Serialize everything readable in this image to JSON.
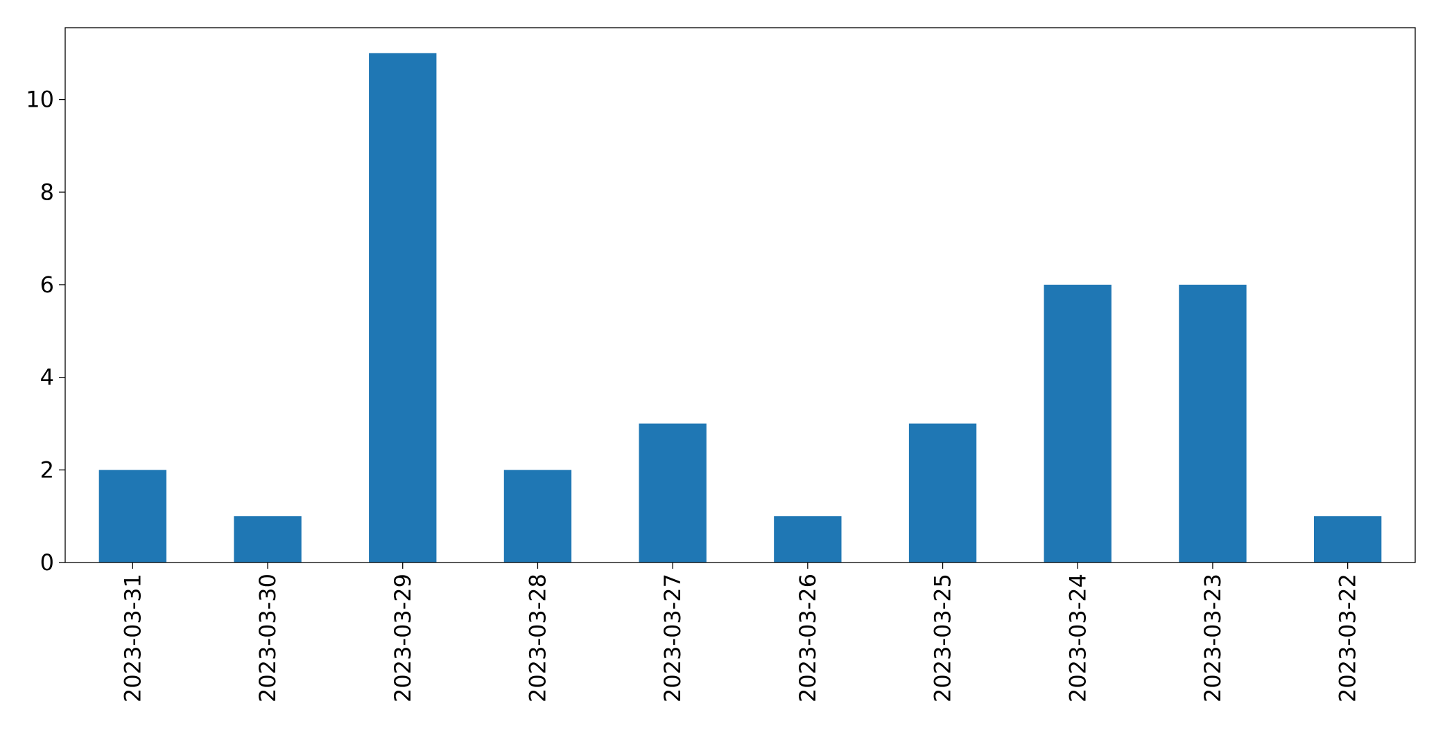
{
  "chart_data": {
    "type": "bar",
    "categories": [
      "2023-03-31",
      "2023-03-30",
      "2023-03-29",
      "2023-03-28",
      "2023-03-27",
      "2023-03-26",
      "2023-03-25",
      "2023-03-24",
      "2023-03-23",
      "2023-03-22"
    ],
    "values": [
      2,
      1,
      11,
      2,
      3,
      1,
      3,
      6,
      6,
      1
    ],
    "color": "#1f77b4",
    "ylim": [
      0,
      11.55
    ],
    "yticks": [
      0,
      2,
      4,
      6,
      8,
      10
    ],
    "grid": false
  }
}
